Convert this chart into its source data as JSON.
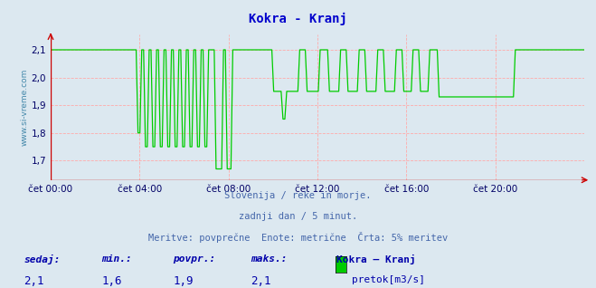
{
  "title": "Kokra - Kranj",
  "title_color": "#0000cc",
  "bg_color": "#dce8f0",
  "plot_bg_color": "#dce8f0",
  "line_color": "#00cc00",
  "axis_color": "#cc0000",
  "grid_h_color": "#ffaaaa",
  "grid_v_color": "#ffaaaa",
  "ylabel_text": "www.si-vreme.com",
  "ylabel_color": "#4488aa",
  "xlabel_ticks": [
    "čet 00:00",
    "čet 04:00",
    "čet 08:00",
    "čet 12:00",
    "čet 16:00",
    "čet 20:00"
  ],
  "ylim": [
    1.63,
    2.155
  ],
  "yticks": [
    1.7,
    1.8,
    1.9,
    2.0,
    2.1
  ],
  "ytick_labels": [
    "1,7",
    "1,8",
    "1,9",
    "2,0",
    "2,1"
  ],
  "footer_line1": "Slovenija / reke in morje.",
  "footer_line2": "zadnji dan / 5 minut.",
  "footer_line3": "Meritve: povprečne  Enote: metrične  Črta: 5% meritev",
  "footer_color": "#4466aa",
  "legend_label": "pretok[m3/s]",
  "legend_color": "#00cc00",
  "stat_labels": [
    "sedaj:",
    "min.:",
    "povpr.:",
    "maks.:"
  ],
  "stat_values": [
    "2,1",
    "1,6",
    "1,9",
    "2,1"
  ],
  "stat_color": "#0000aa",
  "legend_title": "Kokra – Kranj",
  "figsize": [
    6.59,
    3.18
  ],
  "dpi": 100,
  "xtick_positions": [
    0,
    4,
    8,
    12,
    16,
    20
  ]
}
